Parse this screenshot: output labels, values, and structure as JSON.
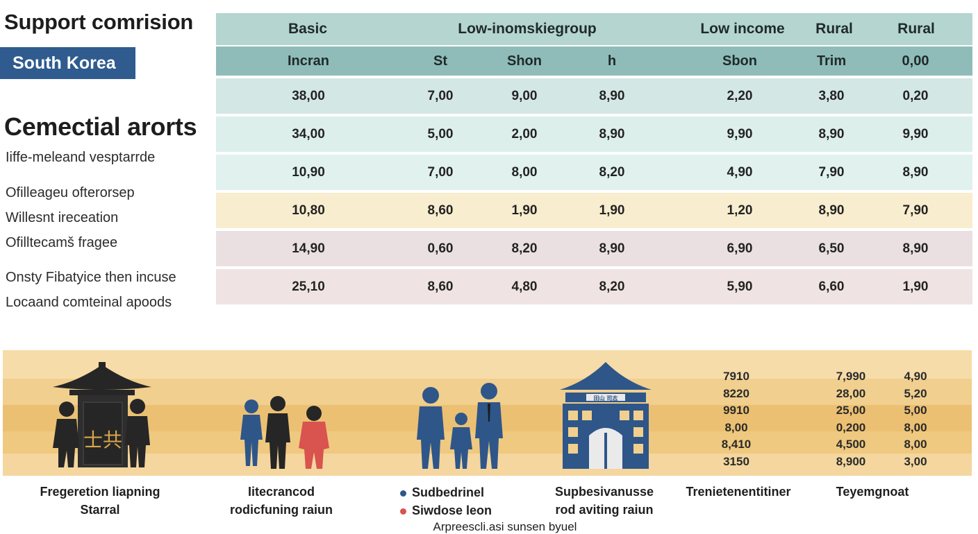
{
  "sidebar": {
    "title": "Support comrision",
    "country": "South Korea",
    "subtitle": "Cemectial arorts",
    "lines": [
      "Iiffe-meleand vesptarrde",
      "Ofilleageu ofterorsep",
      "Willesnt ireceation",
      "Ofilltecamš fragee",
      "Onsty Fibatyice then incuse",
      "Locaand comteinal apoods"
    ]
  },
  "table": {
    "header_top": [
      "Basic",
      "Low-inomskiegroup",
      "Low income",
      "Rural",
      "Rural"
    ],
    "header_sub": [
      "Incran",
      "St",
      "Shon",
      "h",
      "Sbon",
      "Trim",
      "0,00"
    ],
    "rows": [
      {
        "bg": "#d3e7e4",
        "cells": [
          "38,00",
          "7,00",
          "9,00",
          "8,90",
          "2,20",
          "3,80",
          "0,20"
        ]
      },
      {
        "bg": "#dcefeb",
        "cells": [
          "34,00",
          "5,00",
          "2,00",
          "8,90",
          "9,90",
          "8,90",
          "9,90"
        ]
      },
      {
        "bg": "#e0f1ee",
        "cells": [
          "10,90",
          "7,00",
          "8,00",
          "8,20",
          "4,90",
          "7,90",
          "8,90"
        ]
      },
      {
        "bg": "#f8edce",
        "cells": [
          "10,80",
          "8,60",
          "1,90",
          "1,90",
          "1,20",
          "8,90",
          "7,90"
        ]
      },
      {
        "bg": "#ebe0e1",
        "cells": [
          "14,90",
          "0,60",
          "8,20",
          "8,90",
          "6,90",
          "6,50",
          "8,90"
        ]
      },
      {
        "bg": "#efe4e3",
        "cells": [
          "25,10",
          "8,60",
          "4,80",
          "8,20",
          "5,90",
          "6,60",
          "1,90"
        ]
      }
    ]
  },
  "band": {
    "colors": [
      "#f6dca8",
      "#f1cf8e",
      "#ecc072",
      "#efc97f",
      "#f4d69e"
    ],
    "building_sign": "田山 司志",
    "temple_glyphs": "士共",
    "num_cols": [
      [
        "7910",
        "8220",
        "9910",
        "8,00",
        "8,410",
        "3150"
      ],
      [
        "7,990",
        "28,00",
        "25,00",
        "0,200",
        "4,500",
        "8,900"
      ],
      [
        "4,90",
        "5,20",
        "5,00",
        "8,00",
        "8,00",
        "3,00"
      ]
    ],
    "captions": [
      {
        "line1": "Fregeretion liapning",
        "line2": "Starral"
      },
      {
        "line1": "Iitecrancod",
        "line2": "rodicfuning raiun"
      },
      {
        "line1": "Sudbedrinel",
        "line2": "Siwdose leon"
      },
      {
        "line1": "Supbesivanusse",
        "line2": "rod aviting raiun"
      },
      {
        "line1": "Trenietenentitiner"
      },
      {
        "line1": "Teyemgnoat"
      }
    ],
    "footnote": "Arpreescli.asi sunsen byuel",
    "colors_people": {
      "navy": "#2f5689",
      "dark": "#262626",
      "red": "#d9534f"
    }
  }
}
